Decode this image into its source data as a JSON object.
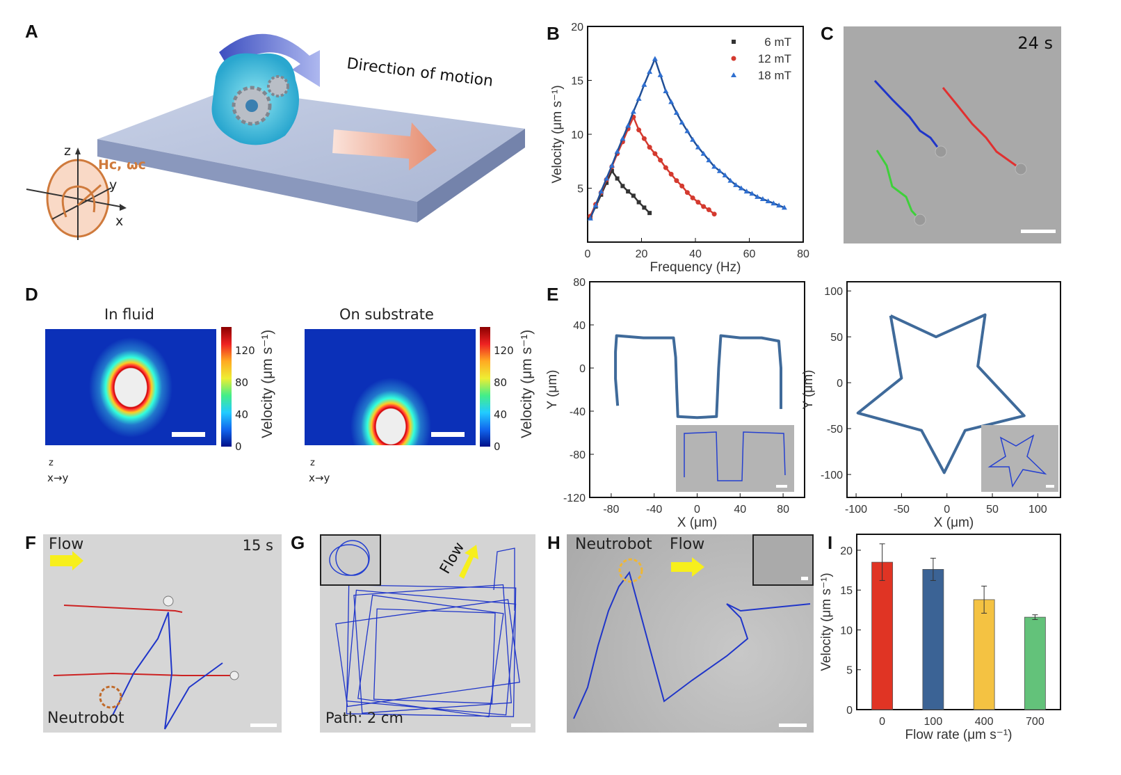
{
  "panels": {
    "A": {
      "label": "A",
      "caption": "Direction of motion",
      "field_label": "Hᴄ, ωᴄ",
      "axes": {
        "z": "z",
        "y": "y",
        "x": "x"
      }
    },
    "B": {
      "label": "B"
    },
    "C": {
      "label": "C",
      "time": "24 s",
      "track_colors": [
        "#1f35c9",
        "#e03030",
        "#3ed03a"
      ]
    },
    "D": {
      "label": "D",
      "left_title": "In fluid",
      "right_title": "On substrate",
      "colorbar_label": "Velocity (μm s⁻¹)",
      "colorbar_ticks": [
        "0",
        "40",
        "80",
        "120"
      ],
      "orientation": {
        "z": "z",
        "x": "x",
        "y": "y"
      }
    },
    "E": {
      "label": "E"
    },
    "F": {
      "label": "F",
      "flow": "Flow",
      "time": "15 s",
      "robot": "Neutrobot"
    },
    "G": {
      "label": "G",
      "flow": "Flow",
      "path": "Path: 2 cm"
    },
    "H": {
      "label": "H",
      "robot": "Neutrobot",
      "flow": "Flow"
    },
    "I": {
      "label": "I"
    }
  },
  "chart_data": [
    {
      "id": "B",
      "type": "line",
      "xlabel": "Frequency (Hz)",
      "ylabel": "Velocity (μm s⁻¹)",
      "xlim": [
        0,
        80
      ],
      "ylim": [
        0,
        20
      ],
      "xticks": [
        "0",
        "20",
        "40",
        "60",
        "80"
      ],
      "yticks": [
        "5",
        "10",
        "15",
        "20"
      ],
      "legend": "top-right",
      "series": [
        {
          "name": "6  mT",
          "color": "#333333",
          "marker": "square",
          "x": [
            1,
            3,
            5,
            7,
            9,
            11,
            13,
            15,
            17,
            19,
            21,
            23
          ],
          "y": [
            2.3,
            3.3,
            4.4,
            5.5,
            6.6,
            5.9,
            5.2,
            4.7,
            4.3,
            3.7,
            3.2,
            2.7
          ]
        },
        {
          "name": "12 mT",
          "color": "#d43a2f",
          "marker": "circle",
          "x": [
            1,
            3,
            5,
            7,
            9,
            11,
            13,
            15,
            17,
            19,
            21,
            23,
            25,
            27,
            29,
            31,
            33,
            35,
            37,
            39,
            41,
            43,
            45,
            47
          ],
          "y": [
            2.4,
            3.5,
            4.6,
            5.8,
            7.0,
            8.2,
            9.3,
            10.5,
            11.6,
            10.4,
            9.6,
            8.8,
            8.2,
            7.6,
            6.9,
            6.3,
            5.7,
            5.2,
            4.6,
            4.1,
            3.7,
            3.3,
            3.0,
            2.6
          ]
        },
        {
          "name": "18 mT",
          "color": "#2f6fd0",
          "line_color": "#1f4e96",
          "marker": "triangle",
          "x": [
            1,
            3,
            5,
            7,
            9,
            11,
            13,
            15,
            17,
            19,
            21,
            23,
            25,
            27,
            29,
            31,
            33,
            35,
            37,
            39,
            41,
            43,
            45,
            47,
            49,
            51,
            53,
            55,
            57,
            59,
            61,
            63,
            65,
            67,
            69,
            71,
            73
          ],
          "y": [
            2.2,
            3.4,
            4.7,
            5.9,
            7.1,
            8.4,
            9.6,
            10.8,
            12.1,
            13.3,
            14.6,
            15.8,
            17.0,
            15.5,
            14.0,
            13.0,
            12.0,
            11.1,
            10.3,
            9.5,
            8.8,
            8.2,
            7.6,
            7.0,
            6.6,
            6.2,
            5.7,
            5.3,
            5.0,
            4.7,
            4.5,
            4.2,
            4.0,
            3.8,
            3.6,
            3.4,
            3.2
          ]
        }
      ]
    },
    {
      "id": "E-left",
      "type": "line",
      "xlabel": "X (μm)",
      "ylabel": "Y (μm)",
      "xlim": [
        -100,
        100
      ],
      "ylim": [
        -120,
        80
      ],
      "xticks": [
        "-80",
        "-40",
        "0",
        "40",
        "80"
      ],
      "yticks": [
        "80",
        "40",
        "0",
        "-40",
        "-80",
        "-120"
      ],
      "color": "#3f6a9a",
      "x": [
        -74,
        -76,
        -76,
        -75,
        -50,
        -22,
        -20,
        -19,
        -18,
        0,
        18,
        20,
        22,
        40,
        60,
        76,
        78,
        78
      ],
      "y": [
        -35,
        -10,
        15,
        30,
        28,
        28,
        10,
        -20,
        -45,
        -46,
        -45,
        0,
        30,
        28,
        28,
        25,
        0,
        -38
      ]
    },
    {
      "id": "E-right",
      "type": "line",
      "xlabel": "X (μm)",
      "ylabel": "Y (μm)",
      "xlim": [
        -110,
        125
      ],
      "ylim": [
        -125,
        110
      ],
      "xticks": [
        "-100",
        "-50",
        "0",
        "50",
        "100"
      ],
      "yticks": [
        "100",
        "50",
        "0",
        "-50",
        "-100"
      ],
      "color": "#3f6a9a",
      "x": [
        -62,
        -12,
        42,
        34,
        85,
        20,
        -3,
        -28,
        -98,
        -50,
        -62
      ],
      "y": [
        73,
        50,
        74,
        18,
        -36,
        -52,
        -98,
        -52,
        -33,
        5,
        73
      ]
    },
    {
      "id": "I",
      "type": "bar",
      "xlabel": "Flow rate (μm s⁻¹)",
      "ylabel": "Velocity (μm s⁻¹)",
      "ylim": [
        0,
        22
      ],
      "yticks": [
        "0",
        "5",
        "10",
        "15",
        "20"
      ],
      "categories": [
        "0",
        "100",
        "400",
        "700"
      ],
      "values": [
        18.5,
        17.6,
        13.8,
        11.6
      ],
      "errors": [
        2.3,
        1.4,
        1.7,
        0.3
      ],
      "colors": [
        "#e03424",
        "#3b6395",
        "#f4c242",
        "#63c27a"
      ]
    }
  ]
}
